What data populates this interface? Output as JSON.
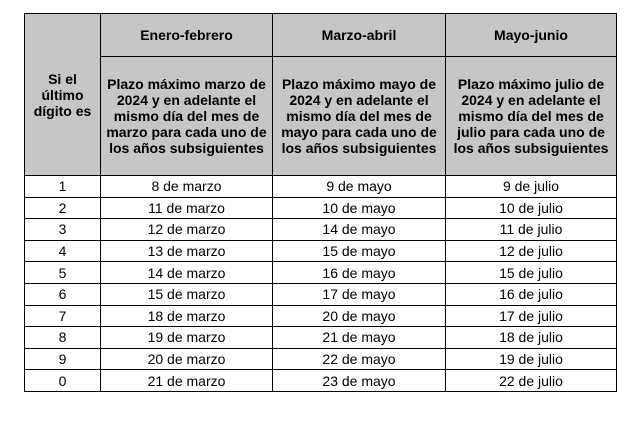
{
  "table": {
    "corner": "Si el último dígito es",
    "columns": [
      "Enero-febrero",
      "Marzo-abril",
      "Mayo-junio"
    ],
    "descriptions": [
      "Plazo máximo marzo de 2024 y en adelante el mismo día del mes de marzo para cada uno de los años subsiguientes",
      "Plazo máximo mayo de 2024 y en adelante el mismo día del mes de mayo para cada uno de los años subsiguientes",
      "Plazo máximo julio de 2024 y en adelante el mismo día del mes de julio para cada uno de los años subsiguientes"
    ],
    "rows": [
      [
        "1",
        "8 de marzo",
        "9 de mayo",
        "9 de julio"
      ],
      [
        "2",
        "11 de marzo",
        "10 de mayo",
        "10 de julio"
      ],
      [
        "3",
        "12 de marzo",
        "14 de mayo",
        "11 de julio"
      ],
      [
        "4",
        "13 de marzo",
        "15 de mayo",
        "12 de julio"
      ],
      [
        "5",
        "14 de marzo",
        "16 de mayo",
        "15 de julio"
      ],
      [
        "6",
        "15 de marzo",
        "17 de mayo",
        "16 de julio"
      ],
      [
        "7",
        "18 de marzo",
        "20 de mayo",
        "17 de julio"
      ],
      [
        "8",
        "19 de marzo",
        "21 de mayo",
        "18 de julio"
      ],
      [
        "9",
        "20 de marzo",
        "22 de mayo",
        "19 de julio"
      ],
      [
        "0",
        "21 de marzo",
        "23 de mayo",
        "22 de julio"
      ]
    ]
  }
}
